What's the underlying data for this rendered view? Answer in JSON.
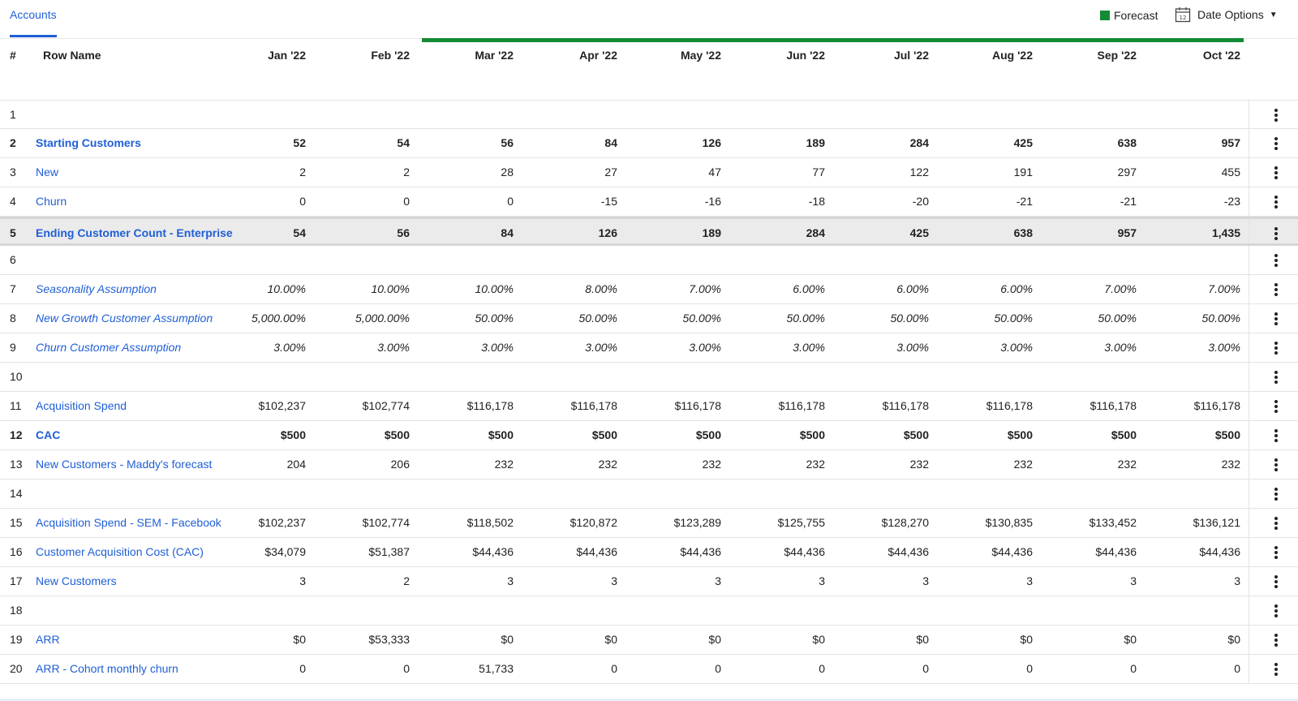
{
  "header": {
    "tab_label": "Accounts",
    "legend_label": "Forecast",
    "legend_color": "#138a36",
    "date_options_label": "Date Options",
    "calendar_icon_number": "12"
  },
  "columns": {
    "index_label": "#",
    "name_label": "Row Name",
    "months": [
      "Jan '22",
      "Feb '22",
      "Mar '22",
      "Apr '22",
      "May '22",
      "Jun '22",
      "Jul '22",
      "Aug '22",
      "Sep '22",
      "Oct '22"
    ]
  },
  "rows": [
    {
      "num": "1",
      "name": "",
      "style": "empty",
      "values": []
    },
    {
      "num": "2",
      "name": "Starting Customers",
      "style": "bold",
      "values": [
        "52",
        "54",
        "56",
        "84",
        "126",
        "189",
        "284",
        "425",
        "638",
        "957"
      ]
    },
    {
      "num": "3",
      "name": "New",
      "style": "normal",
      "values": [
        "2",
        "2",
        "28",
        "27",
        "47",
        "77",
        "122",
        "191",
        "297",
        "455"
      ]
    },
    {
      "num": "4",
      "name": "Churn",
      "style": "normal",
      "values": [
        "0",
        "0",
        "0",
        "-15",
        "-16",
        "-18",
        "-20",
        "-21",
        "-21",
        "-23"
      ]
    },
    {
      "num": "5",
      "name": "Ending Customer Count - Enterprise",
      "style": "highlight",
      "values": [
        "54",
        "56",
        "84",
        "126",
        "189",
        "284",
        "425",
        "638",
        "957",
        "1,435"
      ]
    },
    {
      "num": "6",
      "name": "",
      "style": "empty",
      "values": []
    },
    {
      "num": "7",
      "name": "Seasonality Assumption",
      "style": "italic",
      "values": [
        "10.00%",
        "10.00%",
        "10.00%",
        "8.00%",
        "7.00%",
        "6.00%",
        "6.00%",
        "6.00%",
        "7.00%",
        "7.00%"
      ]
    },
    {
      "num": "8",
      "name": "New Growth Customer Assumption",
      "style": "italic",
      "values": [
        "5,000.00%",
        "5,000.00%",
        "50.00%",
        "50.00%",
        "50.00%",
        "50.00%",
        "50.00%",
        "50.00%",
        "50.00%",
        "50.00%"
      ]
    },
    {
      "num": "9",
      "name": "Churn Customer Assumption",
      "style": "italic",
      "values": [
        "3.00%",
        "3.00%",
        "3.00%",
        "3.00%",
        "3.00%",
        "3.00%",
        "3.00%",
        "3.00%",
        "3.00%",
        "3.00%"
      ]
    },
    {
      "num": "10",
      "name": "",
      "style": "empty",
      "values": []
    },
    {
      "num": "11",
      "name": "Acquisition Spend",
      "style": "normal",
      "values": [
        "$102,237",
        "$102,774",
        "$116,178",
        "$116,178",
        "$116,178",
        "$116,178",
        "$116,178",
        "$116,178",
        "$116,178",
        "$116,178"
      ]
    },
    {
      "num": "12",
      "name": "CAC",
      "style": "bold",
      "values": [
        "$500",
        "$500",
        "$500",
        "$500",
        "$500",
        "$500",
        "$500",
        "$500",
        "$500",
        "$500"
      ]
    },
    {
      "num": "13",
      "name": "New Customers - Maddy's forecast",
      "style": "normal",
      "values": [
        "204",
        "206",
        "232",
        "232",
        "232",
        "232",
        "232",
        "232",
        "232",
        "232"
      ]
    },
    {
      "num": "14",
      "name": "",
      "style": "empty",
      "values": []
    },
    {
      "num": "15",
      "name": "Acquisition Spend - SEM - Facebook",
      "style": "normal",
      "values": [
        "$102,237",
        "$102,774",
        "$118,502",
        "$120,872",
        "$123,289",
        "$125,755",
        "$128,270",
        "$130,835",
        "$133,452",
        "$136,121"
      ]
    },
    {
      "num": "16",
      "name": "Customer Acquisition Cost (CAC)",
      "style": "normal",
      "values": [
        "$34,079",
        "$51,387",
        "$44,436",
        "$44,436",
        "$44,436",
        "$44,436",
        "$44,436",
        "$44,436",
        "$44,436",
        "$44,436"
      ]
    },
    {
      "num": "17",
      "name": "New Customers",
      "style": "normal",
      "values": [
        "3",
        "2",
        "3",
        "3",
        "3",
        "3",
        "3",
        "3",
        "3",
        "3"
      ]
    },
    {
      "num": "18",
      "name": "",
      "style": "empty",
      "values": []
    },
    {
      "num": "19",
      "name": "ARR",
      "style": "normal",
      "values": [
        "$0",
        "$53,333",
        "$0",
        "$0",
        "$0",
        "$0",
        "$0",
        "$0",
        "$0",
        "$0"
      ]
    },
    {
      "num": "20",
      "name": "ARR - Cohort monthly churn",
      "style": "normal",
      "values": [
        "0",
        "0",
        "51,733",
        "0",
        "0",
        "0",
        "0",
        "0",
        "0",
        "0"
      ]
    }
  ]
}
